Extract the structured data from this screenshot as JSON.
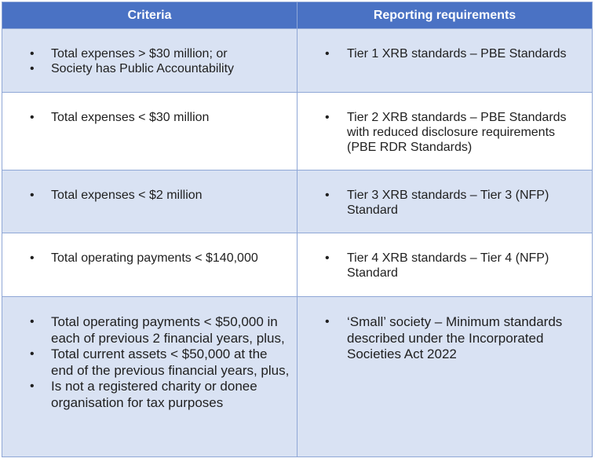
{
  "header": {
    "criteria": "Criteria",
    "reporting": "Reporting requirements"
  },
  "rows": [
    {
      "criteria": [
        "Total expenses > $30 million; or",
        "Society has Public Accountability"
      ],
      "reporting": [
        "Tier 1 XRB standards – PBE Standards"
      ]
    },
    {
      "criteria": [
        "Total expenses < $30 million"
      ],
      "reporting": [
        "Tier 2 XRB standards – PBE Standards with reduced disclosure requirements (PBE RDR Standards)"
      ]
    },
    {
      "criteria": [
        "Total expenses < $2 million"
      ],
      "reporting": [
        "Tier 3 XRB standards – Tier 3 (NFP) Standard"
      ]
    },
    {
      "criteria": [
        "Total operating payments < $140,000"
      ],
      "reporting": [
        "Tier 4 XRB standards – Tier 4 (NFP) Standard"
      ]
    },
    {
      "criteria": [
        "Total operating payments < $50,000 in each of previous 2 financial years, plus,",
        "Total current assets < $50,000 at the end of the previous financial years, plus,",
        "Is not a registered charity or donee organisation for tax purposes"
      ],
      "reporting": [
        "‘Small’ society – Minimum standards described under the Incorporated Societies Act 2022"
      ]
    }
  ]
}
